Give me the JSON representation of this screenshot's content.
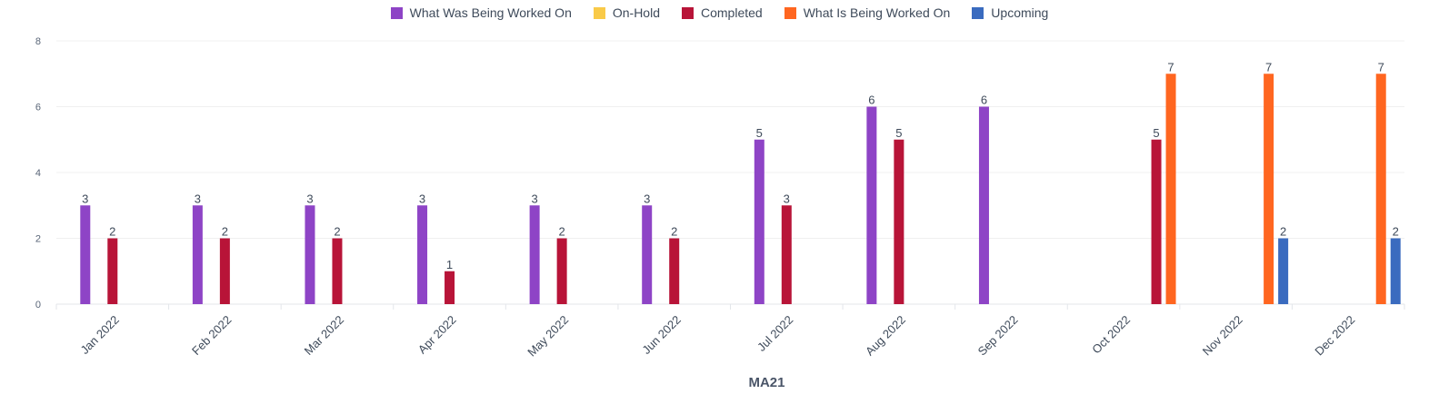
{
  "chart_data": {
    "type": "bar",
    "title": "",
    "xlabel": "MA21",
    "ylabel": "",
    "ylim": [
      0,
      8
    ],
    "yticks": [
      0,
      2,
      4,
      6,
      8
    ],
    "grid": true,
    "legend_position": "top",
    "categories": [
      "Jan 2022",
      "Feb 2022",
      "Mar 2022",
      "Apr 2022",
      "May 2022",
      "Jun 2022",
      "Jul 2022",
      "Aug 2022",
      "Sep 2022",
      "Oct 2022",
      "Nov 2022",
      "Dec 2022"
    ],
    "series": [
      {
        "name": "What Was Being Worked On",
        "color": "#8e44c6",
        "values": [
          3,
          3,
          3,
          3,
          3,
          3,
          5,
          6,
          6,
          null,
          null,
          null
        ]
      },
      {
        "name": "On-Hold",
        "color": "#f9ca48",
        "values": [
          null,
          null,
          null,
          null,
          null,
          null,
          null,
          null,
          null,
          null,
          null,
          null
        ]
      },
      {
        "name": "Completed",
        "color": "#b81438",
        "values": [
          2,
          2,
          2,
          1,
          2,
          2,
          3,
          5,
          null,
          5,
          null,
          null
        ]
      },
      {
        "name": "What Is Being Worked On",
        "color": "#ff6620",
        "values": [
          null,
          null,
          null,
          null,
          null,
          null,
          null,
          null,
          null,
          7,
          7,
          7
        ]
      },
      {
        "name": "Upcoming",
        "color": "#3a6bbf",
        "values": [
          null,
          null,
          null,
          null,
          null,
          null,
          null,
          null,
          null,
          null,
          2,
          2
        ]
      }
    ]
  }
}
